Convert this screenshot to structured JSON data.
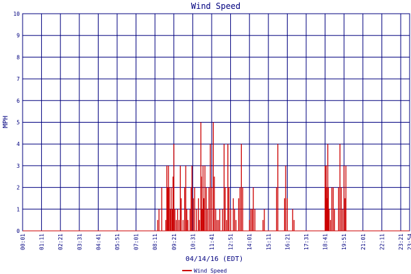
{
  "chart_data": {
    "type": "bar",
    "title": "Wind Speed",
    "xlabel": "04/14/16 (EDT)",
    "ylabel": "MPH",
    "ylim": [
      0,
      10
    ],
    "yticks": [
      0,
      1,
      2,
      3,
      4,
      5,
      6,
      7,
      8,
      9,
      10
    ],
    "xlim": [
      "00:01",
      "23:54"
    ],
    "xticks": [
      "00:01",
      "01:11",
      "02:21",
      "03:31",
      "04:41",
      "05:51",
      "07:01",
      "08:11",
      "09:21",
      "10:31",
      "11:41",
      "12:51",
      "14:01",
      "15:11",
      "16:21",
      "17:31",
      "18:41",
      "19:51",
      "21:01",
      "22:11",
      "23:21",
      "23:54"
    ],
    "grid": true,
    "legend": "bottom-center",
    "series": [
      {
        "name": "Wind Speed",
        "color": "#cc0000",
        "points": [
          [
            "08:21",
            0.5
          ],
          [
            "08:26",
            1
          ],
          [
            "08:36",
            2
          ],
          [
            "08:51",
            0.5
          ],
          [
            "08:55",
            3
          ],
          [
            "08:58",
            2
          ],
          [
            "09:01",
            3
          ],
          [
            "09:04",
            2
          ],
          [
            "09:08",
            1
          ],
          [
            "09:11",
            2
          ],
          [
            "09:15",
            1
          ],
          [
            "09:18",
            2.5
          ],
          [
            "09:21",
            4
          ],
          [
            "09:25",
            1
          ],
          [
            "09:30",
            0.5
          ],
          [
            "09:35",
            1
          ],
          [
            "09:40",
            0.5
          ],
          [
            "09:45",
            3
          ],
          [
            "09:48",
            1.5
          ],
          [
            "09:55",
            0.5
          ],
          [
            "10:01",
            2
          ],
          [
            "10:05",
            3
          ],
          [
            "10:09",
            1
          ],
          [
            "10:13",
            0.5
          ],
          [
            "10:21",
            1
          ],
          [
            "10:25",
            2
          ],
          [
            "10:28",
            3
          ],
          [
            "10:33",
            1.5
          ],
          [
            "10:38",
            2
          ],
          [
            "10:45",
            1
          ],
          [
            "10:52",
            1.5
          ],
          [
            "10:56",
            0.5
          ],
          [
            "11:01",
            5
          ],
          [
            "11:03",
            2.5
          ],
          [
            "11:06",
            1
          ],
          [
            "11:09",
            3
          ],
          [
            "11:12",
            1.5
          ],
          [
            "11:16",
            3
          ],
          [
            "11:21",
            2
          ],
          [
            "11:25",
            1
          ],
          [
            "11:31",
            2
          ],
          [
            "11:36",
            4
          ],
          [
            "11:41",
            2
          ],
          [
            "11:47",
            5
          ],
          [
            "11:51",
            2.5
          ],
          [
            "11:56",
            1
          ],
          [
            "12:01",
            0.5
          ],
          [
            "12:06",
            0.5
          ],
          [
            "12:11",
            1
          ],
          [
            "12:21",
            1
          ],
          [
            "12:27",
            4
          ],
          [
            "12:31",
            2
          ],
          [
            "12:36",
            0.5
          ],
          [
            "12:41",
            4
          ],
          [
            "12:45",
            2
          ],
          [
            "12:51",
            1
          ],
          [
            "13:01",
            1.5
          ],
          [
            "13:06",
            1
          ],
          [
            "13:11",
            0.5
          ],
          [
            "13:21",
            1.5
          ],
          [
            "13:26",
            2
          ],
          [
            "13:31",
            4
          ],
          [
            "13:36",
            2
          ],
          [
            "14:01",
            0.5
          ],
          [
            "14:06",
            1
          ],
          [
            "14:11",
            1
          ],
          [
            "14:15",
            2
          ],
          [
            "14:21",
            1
          ],
          [
            "14:51",
            0.5
          ],
          [
            "14:56",
            1
          ],
          [
            "15:41",
            2
          ],
          [
            "15:46",
            4
          ],
          [
            "16:11",
            1.5
          ],
          [
            "16:15",
            3
          ],
          [
            "16:21",
            1.5
          ],
          [
            "16:41",
            1
          ],
          [
            "16:46",
            0.5
          ],
          [
            "18:41",
            3
          ],
          [
            "18:43",
            2
          ],
          [
            "18:45",
            3
          ],
          [
            "18:47",
            2
          ],
          [
            "18:49",
            1.5
          ],
          [
            "18:51",
            4
          ],
          [
            "18:53",
            2
          ],
          [
            "18:56",
            1
          ],
          [
            "19:01",
            0.5
          ],
          [
            "19:06",
            2
          ],
          [
            "19:11",
            2
          ],
          [
            "19:16",
            1
          ],
          [
            "19:31",
            2
          ],
          [
            "19:36",
            4
          ],
          [
            "19:41",
            2
          ],
          [
            "19:46",
            1
          ],
          [
            "19:51",
            3
          ],
          [
            "19:55",
            1.5
          ],
          [
            "19:58",
            3
          ]
        ]
      }
    ]
  }
}
